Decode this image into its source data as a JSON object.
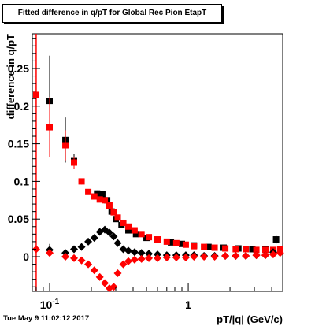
{
  "chart_data": {
    "type": "scatter",
    "title": "Fitted difference in q/pT for Global Rec Pion EtapT",
    "xlabel": "pT/|q| (GeV/c)",
    "ylabel": "difference in q/pT",
    "xscale": "log",
    "xlim": [
      0.075,
      4.8
    ],
    "ylim": [
      -0.046,
      0.296
    ],
    "x_tick_labels": [
      {
        "value": 0.1,
        "label": "10",
        "exponent": "-1"
      },
      {
        "value": 1,
        "label": "1",
        "exponent": ""
      }
    ],
    "y_tick_labels": [
      {
        "value": 0,
        "label": "0"
      },
      {
        "value": 0.05,
        "label": "0.05"
      },
      {
        "value": 0.1,
        "label": "0.1"
      },
      {
        "value": 0.15,
        "label": "0.15"
      },
      {
        "value": 0.2,
        "label": "0.2"
      },
      {
        "value": 0.25,
        "label": "0.25"
      }
    ],
    "reference_line": {
      "x": 0.08,
      "color": "#ff0000"
    },
    "grid": false,
    "legend": false,
    "series": [
      {
        "marker": "square",
        "color": "#000000",
        "x": [
          0.1,
          0.13,
          0.15,
          0.22,
          0.24,
          0.26,
          0.28,
          0.3,
          0.33,
          0.37,
          0.42,
          0.5,
          0.6,
          0.75,
          0.9,
          1.1,
          1.4,
          1.8,
          2.3,
          2.9,
          3.6,
          4.3
        ],
        "y": [
          0.207,
          0.155,
          0.127,
          0.084,
          0.083,
          0.075,
          0.06,
          0.05,
          0.042,
          0.035,
          0.03,
          0.025,
          0.022,
          0.019,
          0.017,
          0.015,
          0.013,
          0.012,
          0.011,
          0.01,
          0.01,
          0.023
        ],
        "yerr": [
          0.06,
          0.03,
          0.01,
          0.004,
          0.003,
          0.003,
          0.003,
          0.002,
          0.002,
          0.002,
          0.002,
          0.002,
          0.002,
          0.002,
          0.002,
          0.002,
          0.002,
          0.002,
          0.002,
          0.002,
          0.002,
          0.006
        ]
      },
      {
        "marker": "square",
        "color": "#ff0000",
        "x": [
          0.08,
          0.1,
          0.13,
          0.15,
          0.17,
          0.19,
          0.21,
          0.23,
          0.25,
          0.27,
          0.29,
          0.31,
          0.34,
          0.37,
          0.41,
          0.46,
          0.52,
          0.6,
          0.7,
          0.82,
          0.96,
          1.1,
          1.3,
          1.55,
          1.85,
          2.2,
          2.6,
          3.1,
          3.6,
          4.1,
          4.6
        ],
        "y": [
          0.215,
          0.172,
          0.148,
          0.125,
          0.1,
          0.086,
          0.08,
          0.076,
          0.075,
          0.068,
          0.059,
          0.052,
          0.045,
          0.04,
          0.035,
          0.03,
          0.026,
          0.023,
          0.02,
          0.018,
          0.016,
          0.014,
          0.013,
          0.012,
          0.011,
          0.01,
          0.01,
          0.009,
          0.009,
          0.009,
          0.01
        ],
        "yerr": [
          0.015,
          0.04,
          0.02,
          0.008,
          0.004,
          0.003,
          0.003,
          0.003,
          0.003,
          0.003,
          0.002,
          0.002,
          0.002,
          0.002,
          0.002,
          0.002,
          0.002,
          0.002,
          0.002,
          0.002,
          0.002,
          0.002,
          0.002,
          0.002,
          0.002,
          0.002,
          0.002,
          0.002,
          0.002,
          0.002,
          0.003
        ]
      },
      {
        "marker": "diamond",
        "color": "#000000",
        "x": [
          0.1,
          0.13,
          0.15,
          0.17,
          0.19,
          0.21,
          0.23,
          0.25,
          0.27,
          0.29,
          0.31,
          0.34,
          0.37,
          0.41,
          0.46,
          0.52,
          0.6,
          0.7,
          0.82,
          0.96,
          1.1,
          1.3,
          1.55,
          1.85,
          2.2,
          2.6,
          3.1,
          3.6,
          4.1
        ],
        "y": [
          0.009,
          0.005,
          0.01,
          0.013,
          0.02,
          0.025,
          0.033,
          0.036,
          0.032,
          0.027,
          0.018,
          0.01,
          0.008,
          0.006,
          0.005,
          0.004,
          0.003,
          0.002,
          0.002,
          0.002,
          0.002,
          0.001,
          0.001,
          0.001,
          0.001,
          0.001,
          0.002,
          0.002,
          0.006
        ],
        "yerr": [
          0.008,
          0.004,
          0.003,
          0.003,
          0.003,
          0.003,
          0.003,
          0.002,
          0.002,
          0.002,
          0.002,
          0.002,
          0.002,
          0.002,
          0.002,
          0.002,
          0.002,
          0.002,
          0.002,
          0.002,
          0.002,
          0.002,
          0.002,
          0.002,
          0.002,
          0.002,
          0.002,
          0.002,
          0.003
        ]
      },
      {
        "marker": "diamond",
        "color": "#ff0000",
        "x": [
          0.08,
          0.1,
          0.13,
          0.15,
          0.17,
          0.19,
          0.21,
          0.23,
          0.25,
          0.27,
          0.29,
          0.31,
          0.34,
          0.37,
          0.41,
          0.46,
          0.52,
          0.6,
          0.7,
          0.82,
          0.96,
          1.1,
          1.3,
          1.55,
          1.85,
          2.2,
          2.6,
          3.1,
          3.6,
          4.1,
          4.6
        ],
        "y": [
          0.01,
          0.005,
          0.0,
          -0.002,
          -0.005,
          -0.01,
          -0.018,
          -0.027,
          -0.035,
          -0.042,
          -0.04,
          -0.022,
          -0.01,
          -0.006,
          -0.004,
          -0.003,
          -0.002,
          -0.002,
          -0.001,
          -0.001,
          -0.001,
          0.0,
          0.0,
          0.0,
          0.001,
          0.001,
          0.001,
          0.002,
          0.002,
          0.003,
          0.005
        ],
        "yerr": [
          0.006,
          0.004,
          0.003,
          0.003,
          0.003,
          0.003,
          0.003,
          0.003,
          0.003,
          0.003,
          0.003,
          0.002,
          0.002,
          0.002,
          0.002,
          0.002,
          0.002,
          0.002,
          0.002,
          0.002,
          0.002,
          0.002,
          0.002,
          0.002,
          0.002,
          0.002,
          0.002,
          0.002,
          0.002,
          0.002,
          0.003
        ]
      }
    ]
  },
  "footer": {
    "timestamp": "Tue May  9 11:02:12 2017"
  }
}
